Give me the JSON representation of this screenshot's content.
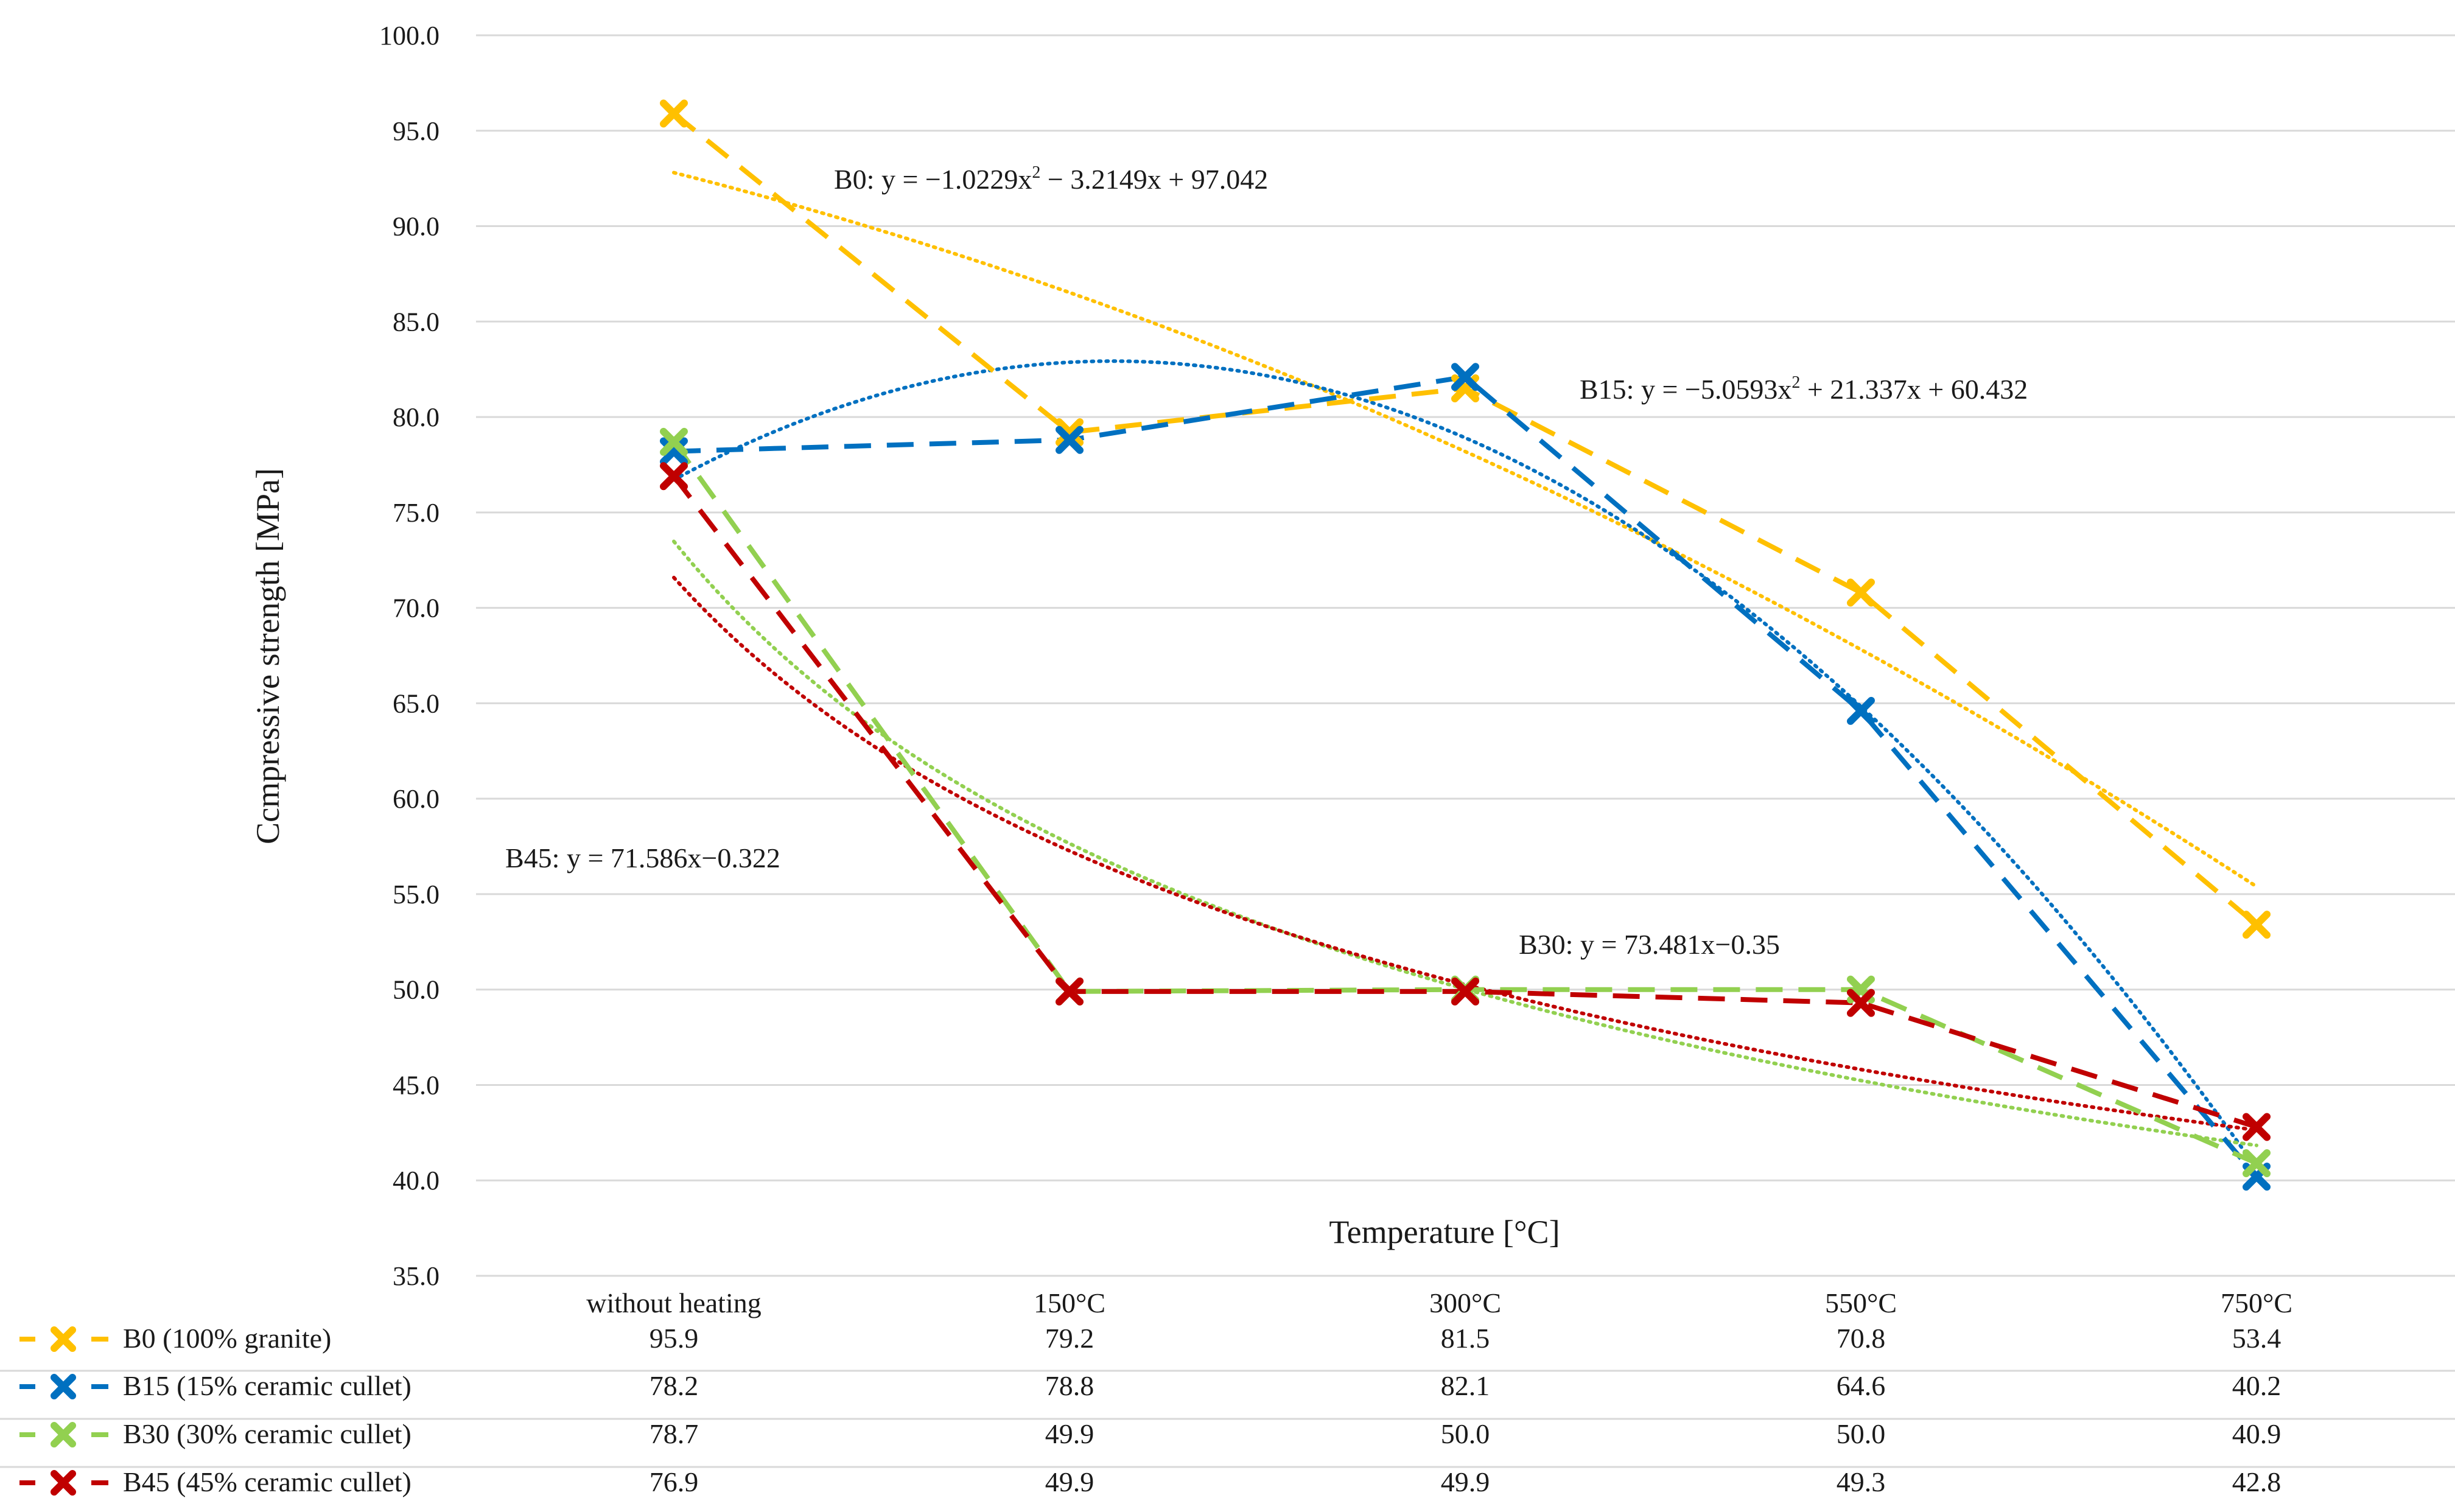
{
  "chart_data": {
    "type": "line",
    "title": "",
    "xlabel": "Temperature [°C]",
    "ylabel": "Ccmpressive strength [MPa]",
    "ylim": [
      35,
      100
    ],
    "yticks": [
      "35.0",
      "40.0",
      "45.0",
      "50.0",
      "55.0",
      "60.0",
      "65.0",
      "70.0",
      "75.0",
      "80.0",
      "85.0",
      "90.0",
      "95.0",
      "100.0"
    ],
    "categories": [
      "without heating",
      "150°C",
      "300°C",
      "550°C",
      "750°C"
    ],
    "grid": true,
    "legend_position": "bottom data table",
    "series": [
      {
        "name": "B0 (100% granite)",
        "color": "#FFC000",
        "values": [
          95.9,
          79.2,
          81.5,
          70.8,
          53.4
        ],
        "labels": [
          "95.9",
          "79.2",
          "81.5",
          "70.8",
          "53.4"
        ],
        "trendline": {
          "type": "poly2",
          "a": -1.0229,
          "b": -3.2149,
          "c": 97.042
        }
      },
      {
        "name": "B15 (15% ceramic cullet)",
        "color": "#0070C0",
        "values": [
          78.2,
          78.8,
          82.1,
          64.6,
          40.2
        ],
        "labels": [
          "78.2",
          "78.8",
          "82.1",
          "64.6",
          "40.2"
        ],
        "trendline": {
          "type": "poly2",
          "a": -5.0593,
          "b": 21.337,
          "c": 60.432
        }
      },
      {
        "name": "B30 (30% ceramic cullet)",
        "color": "#92D050",
        "values": [
          78.7,
          49.9,
          50.0,
          50.0,
          40.9
        ],
        "labels": [
          "78.7",
          "49.9",
          "50.0",
          "50.0",
          "40.9"
        ],
        "trendline": {
          "type": "power",
          "a": 73.481,
          "b": -0.35
        }
      },
      {
        "name": "B45 (45% ceramic cullet)",
        "color": "#C00000",
        "values": [
          76.9,
          49.9,
          49.9,
          49.3,
          42.8
        ],
        "labels": [
          "76.9",
          "49.9",
          "49.9",
          "49.3",
          "42.8"
        ],
        "trendline": {
          "type": "power",
          "a": 71.586,
          "b": -0.322
        }
      }
    ],
    "annotations": [
      {
        "series": "B0",
        "prefix": "B0: y = −1.0229x",
        "sup": "2",
        "suffix": " − 3.2149x + 97.042"
      },
      {
        "series": "B15",
        "prefix": "B15: y = −5.0593x",
        "sup": "2",
        "suffix": " + 21.337x + 60.432"
      },
      {
        "series": "B30",
        "prefix": "B30: y = 73.481x−0.35",
        "sup": "",
        "suffix": ""
      },
      {
        "series": "B45",
        "prefix": "B45: y = 71.586x−0.322",
        "sup": "",
        "suffix": ""
      }
    ]
  }
}
